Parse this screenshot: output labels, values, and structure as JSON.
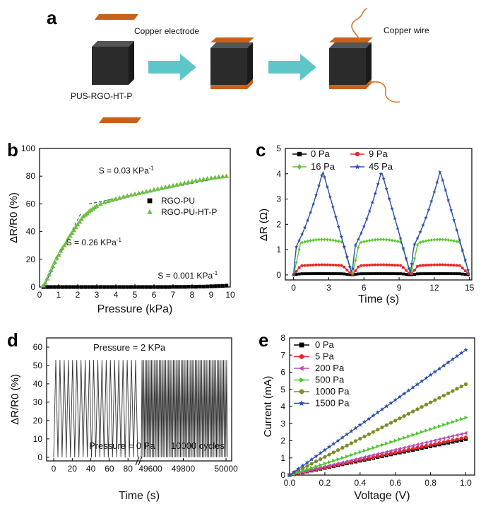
{
  "panels": {
    "a": {
      "letter": "a",
      "copper_electrode_label": "Copper electrode",
      "copper_wire_label": "Copper wire",
      "sample_label": "PUS-RGO-HT-P",
      "colors": {
        "cube": "#2b2b2b",
        "electrode": "#c8621a",
        "arrow": "#5ec6c8",
        "wire": "#d9782b"
      }
    }
  },
  "chart_data": [
    {
      "panel": "b",
      "type": "scatter",
      "xlabel": "Pressure (kPa)",
      "ylabel": "ΔR/R0 (%)",
      "xlim": [
        0,
        10
      ],
      "ylim": [
        0,
        100
      ],
      "xticks": [
        0,
        1,
        2,
        3,
        4,
        5,
        6,
        7,
        8,
        9,
        10
      ],
      "yticks": [
        0,
        20,
        40,
        60,
        80,
        100
      ],
      "series": [
        {
          "name": "RGO-PU",
          "marker": "square",
          "color": "#000000",
          "x": [
            0.2,
            0.4,
            0.6,
            0.8,
            1.0,
            1.2,
            1.4,
            1.6,
            1.8,
            2.0,
            2.2,
            2.4,
            2.6,
            2.8,
            3.0,
            3.2,
            3.4,
            3.6,
            3.8,
            4.0,
            4.2,
            4.4,
            4.6,
            4.8,
            5.0,
            5.2,
            5.4,
            5.6,
            5.8,
            6.0,
            6.2,
            6.4,
            6.6,
            6.8,
            7.0,
            7.2,
            7.4,
            7.6,
            7.8,
            8.0,
            8.2,
            8.4,
            8.6,
            8.8,
            9.0,
            9.2,
            9.4,
            9.6,
            9.8
          ],
          "y": [
            0,
            0,
            0,
            0,
            0,
            0,
            0,
            0,
            0,
            0,
            0,
            0,
            0,
            0,
            0,
            0,
            0,
            0,
            0,
            0,
            0,
            0,
            0,
            0,
            0,
            0,
            0,
            0,
            0,
            0,
            0,
            0,
            0,
            0,
            0.1,
            0.1,
            0.1,
            0.1,
            0.2,
            0.2,
            0.2,
            0.3,
            0.3,
            0.4,
            0.5,
            0.6,
            0.7,
            0.8,
            1.0
          ]
        },
        {
          "name": "RGO-PU-HT-P",
          "marker": "triangle",
          "color": "#6abf3c",
          "x": [
            0.2,
            0.3,
            0.4,
            0.5,
            0.6,
            0.7,
            0.8,
            0.9,
            1.0,
            1.1,
            1.2,
            1.3,
            1.4,
            1.5,
            1.6,
            1.7,
            1.8,
            1.9,
            2.0,
            2.1,
            2.2,
            2.3,
            2.4,
            2.5,
            2.6,
            2.7,
            2.8,
            2.9,
            3.0,
            3.2,
            3.4,
            3.6,
            3.8,
            4.0,
            4.2,
            4.4,
            4.6,
            4.8,
            5.0,
            5.2,
            5.4,
            5.6,
            5.8,
            6.0,
            6.2,
            6.4,
            6.6,
            6.8,
            7.0,
            7.2,
            7.4,
            7.6,
            7.8,
            8.0,
            8.2,
            8.4,
            8.6,
            8.8,
            9.0,
            9.2,
            9.4,
            9.6,
            9.8
          ],
          "y": [
            1,
            3,
            6,
            9,
            12,
            15,
            18,
            21,
            23,
            26,
            28,
            30,
            32,
            35,
            37,
            39,
            41,
            43,
            45,
            47,
            49,
            51,
            52,
            53,
            54.5,
            55.5,
            56.5,
            57.5,
            58.5,
            60,
            61,
            62,
            62.8,
            63.5,
            64.2,
            65,
            65.7,
            66.4,
            67,
            67.6,
            68.2,
            68.9,
            69.5,
            70.2,
            70.8,
            71.4,
            72,
            72.6,
            73.2,
            73.8,
            74.4,
            75,
            75.6,
            76.2,
            76.8,
            77.2,
            77.8,
            78.2,
            78.6,
            79,
            79.4,
            79.7,
            80
          ]
        }
      ],
      "fit_lines": [
        {
          "x": [
            0.2,
            2.2
          ],
          "y": [
            0,
            54
          ]
        },
        {
          "x": [
            2.6,
            9.9
          ],
          "y": [
            60,
            80
          ]
        },
        {
          "x": [
            0.2,
            9.9
          ],
          "y": [
            -0.6,
            1.3
          ]
        }
      ],
      "annotations": [
        {
          "text": "S = 0.03 KPa",
          "sup": "-1",
          "x": 3.1,
          "y": 82
        },
        {
          "text": "S = 0.26 KPa",
          "sup": "-1",
          "x": 1.4,
          "y": 30
        },
        {
          "text": "S = 0.001 KPa",
          "sup": "-1",
          "x": 6.2,
          "y": 6
        }
      ],
      "legend": "center-right"
    },
    {
      "panel": "c",
      "type": "line",
      "xlabel": "Time (s)",
      "ylabel": "ΔR (Ω)",
      "xlim": [
        -0.7,
        15.2
      ],
      "ylim": [
        -0.2,
        5
      ],
      "xticks": [
        0,
        3,
        6,
        9,
        12,
        15
      ],
      "yticks": [
        0,
        1,
        2,
        3,
        4,
        5
      ],
      "pulse_centers_s": [
        2.5,
        7.5,
        12.5
      ],
      "pulse_period_s": 5,
      "series": [
        {
          "name": "0 Pa",
          "marker": "square",
          "color": "#000000",
          "peak": 0.05
        },
        {
          "name": "9 Pa",
          "marker": "circle",
          "color": "#e8262b",
          "peak": 0.4
        },
        {
          "name": "16 Pa",
          "marker": "diamond",
          "color": "#59c72e",
          "peak": 1.4
        },
        {
          "name": "45 Pa",
          "marker": "star",
          "color": "#2b4fa8",
          "peak": 4.1
        }
      ],
      "legend": "top"
    },
    {
      "panel": "d",
      "type": "line",
      "xlabel": "Time (s)",
      "ylabel": "ΔR/R0 (%)",
      "ylim": [
        -2,
        65
      ],
      "yticks": [
        0,
        10,
        20,
        30,
        40,
        50,
        60
      ],
      "segment_1_xticks": [
        0,
        20,
        40,
        60,
        80
      ],
      "segment_1_cycles": 20,
      "axis_break_label": "49600",
      "segment_2_xticks": [
        49600,
        49800,
        50000
      ],
      "segment_2_cycles": 55,
      "peak": 53,
      "labels": {
        "top": "Pressure = 2 KPa",
        "bottom": "Pressure = 0 Pa",
        "cycles": "10000 cycles"
      }
    },
    {
      "panel": "e",
      "type": "line",
      "xlabel": "Voltage (V)",
      "ylabel": "Current (mA)",
      "xlim": [
        0,
        1.05
      ],
      "ylim": [
        0,
        8
      ],
      "xticks": [
        0.0,
        0.2,
        0.4,
        0.6,
        0.8,
        1.0
      ],
      "yticks": [
        0,
        1,
        2,
        3,
        4,
        5,
        6,
        7,
        8
      ],
      "series": [
        {
          "name": "0 Pa",
          "marker": "square",
          "color": "#000000",
          "slope": 2.1
        },
        {
          "name": "5 Pa",
          "marker": "circle",
          "color": "#e8262b",
          "slope": 2.2
        },
        {
          "name": "200 Pa",
          "marker": "triangle-left",
          "color": "#b84fb5",
          "slope": 2.45
        },
        {
          "name": "500 Pa",
          "marker": "triangle-right",
          "color": "#4cc62e",
          "slope": 3.35
        },
        {
          "name": "1000 Pa",
          "marker": "circle",
          "color": "#7f8a26",
          "slope": 5.3
        },
        {
          "name": "1500 Pa",
          "marker": "star",
          "color": "#2b4fa8",
          "slope": 7.3
        }
      ],
      "legend": "top-left"
    }
  ],
  "panel_letters": {
    "b": "b",
    "c": "c",
    "d": "d",
    "e": "e"
  }
}
